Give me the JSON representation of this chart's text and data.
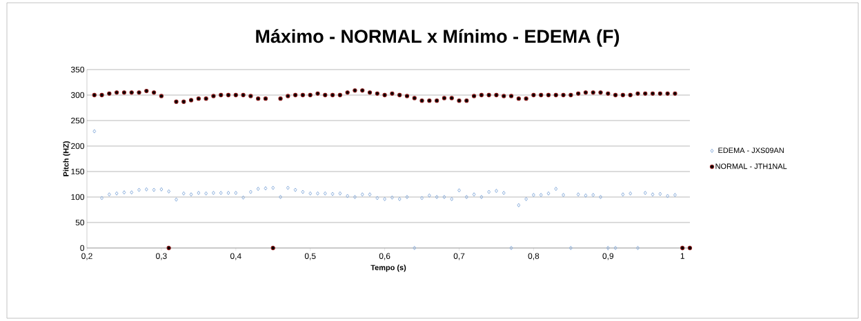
{
  "chart_data": {
    "type": "scatter",
    "title": "Máximo - NORMAL x Mínimo - EDEMA (F)",
    "xlabel": "Tempo (s)",
    "ylabel": "Pitch (HZ)",
    "x": [
      0.21,
      0.22,
      0.23,
      0.24,
      0.25,
      0.26,
      0.27,
      0.28,
      0.29,
      0.3,
      0.31,
      0.32,
      0.33,
      0.34,
      0.35,
      0.36,
      0.37,
      0.38,
      0.39,
      0.4,
      0.41,
      0.42,
      0.43,
      0.44,
      0.45,
      0.46,
      0.47,
      0.48,
      0.49,
      0.5,
      0.51,
      0.52,
      0.53,
      0.54,
      0.55,
      0.56,
      0.57,
      0.58,
      0.59,
      0.6,
      0.61,
      0.62,
      0.63,
      0.64,
      0.65,
      0.66,
      0.67,
      0.68,
      0.69,
      0.7,
      0.71,
      0.72,
      0.73,
      0.74,
      0.75,
      0.76,
      0.77,
      0.78,
      0.79,
      0.8,
      0.81,
      0.82,
      0.83,
      0.84,
      0.85,
      0.86,
      0.87,
      0.88,
      0.89,
      0.9,
      0.91,
      0.92,
      0.93,
      0.94,
      0.95,
      0.96,
      0.97,
      0.98,
      0.99,
      1.0,
      1.01
    ],
    "series": [
      {
        "name": "EDEMA - JXS09AN",
        "color": "#7ea6d8",
        "marker": "diamond",
        "values": [
          229,
          98,
          105,
          107,
          109,
          109,
          114,
          115,
          114,
          115,
          111,
          95,
          107,
          105,
          108,
          107,
          108,
          108,
          108,
          108,
          99,
          110,
          116,
          117,
          118,
          100,
          118,
          114,
          110,
          107,
          107,
          107,
          106,
          107,
          102,
          100,
          105,
          105,
          98,
          96,
          99,
          96,
          100,
          0,
          98,
          103,
          100,
          100,
          96,
          113,
          100,
          105,
          100,
          110,
          112,
          108,
          0,
          84,
          96,
          104,
          104,
          107,
          116,
          104,
          0,
          105,
          103,
          104,
          100,
          0,
          0,
          105,
          107,
          0,
          108,
          105,
          106,
          102,
          104,
          null,
          null
        ]
      },
      {
        "name": "NORMAL - JTH1NAL",
        "color": "#8b1a1a",
        "marker": "circle",
        "values": [
          300,
          300,
          303,
          305,
          305,
          305,
          305,
          308,
          305,
          298,
          0,
          287,
          287,
          290,
          293,
          293,
          298,
          300,
          300,
          300,
          300,
          298,
          293,
          293,
          0,
          293,
          298,
          300,
          300,
          300,
          303,
          300,
          300,
          300,
          305,
          309,
          309,
          305,
          303,
          300,
          303,
          300,
          298,
          294,
          289,
          289,
          289,
          294,
          294,
          289,
          289,
          298,
          300,
          300,
          300,
          298,
          298,
          293,
          293,
          300,
          300,
          300,
          300,
          300,
          300,
          303,
          305,
          305,
          305,
          303,
          300,
          300,
          300,
          303,
          303,
          303,
          303,
          303,
          303,
          0,
          0
        ]
      }
    ],
    "xlim": [
      0.2,
      1.01
    ],
    "ylim": [
      0,
      350
    ],
    "xticks": [
      {
        "value": 0.2,
        "label": "0,2"
      },
      {
        "value": 0.3,
        "label": "0,3"
      },
      {
        "value": 0.4,
        "label": "0,4"
      },
      {
        "value": 0.5,
        "label": "0,5"
      },
      {
        "value": 0.6,
        "label": "0,6"
      },
      {
        "value": 0.7,
        "label": "0,7"
      },
      {
        "value": 0.8,
        "label": "0,8"
      },
      {
        "value": 0.9,
        "label": "0,9"
      },
      {
        "value": 1.0,
        "label": "1"
      }
    ],
    "yticks": [
      0,
      50,
      100,
      150,
      200,
      250,
      300,
      350
    ],
    "grid": "y",
    "legend": "right"
  }
}
